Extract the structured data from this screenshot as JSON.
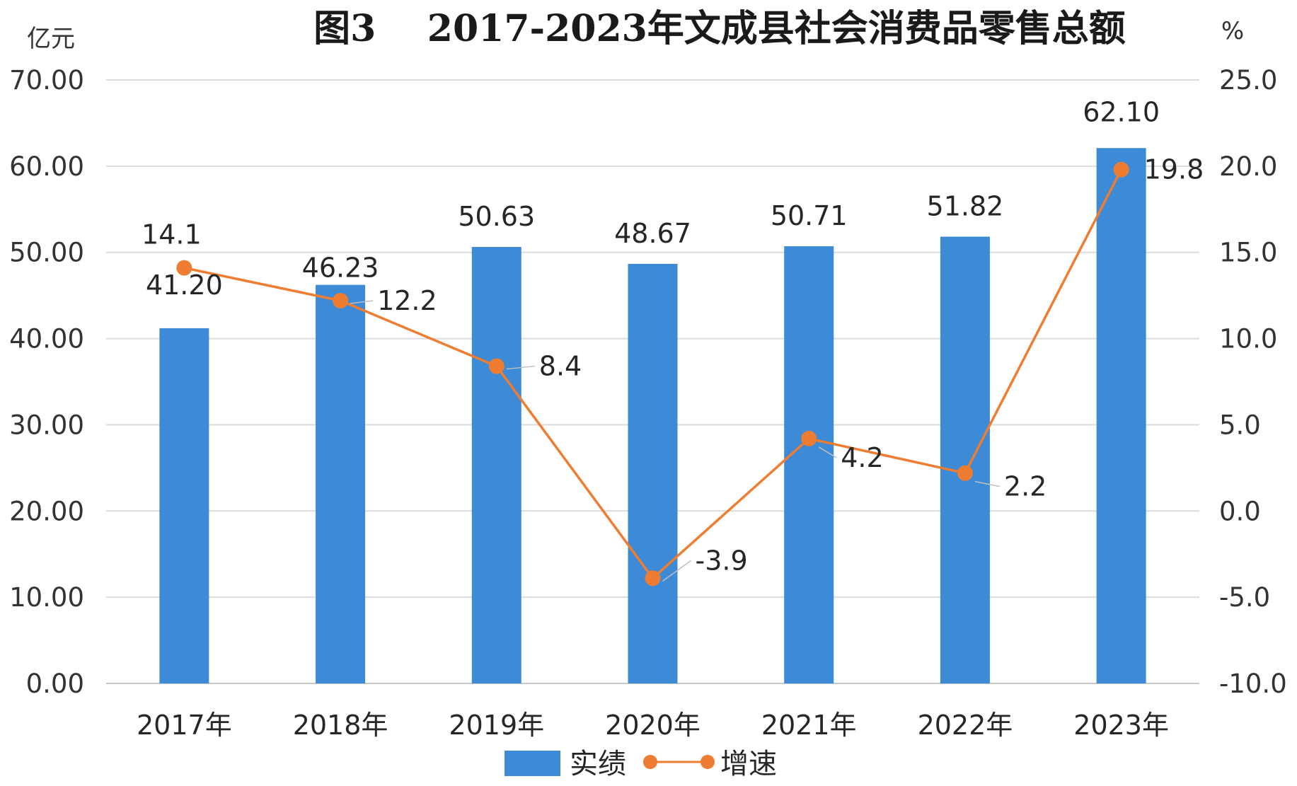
{
  "chart_data": {
    "type": "bar",
    "title": "图3    2017-2023年文成县社会消费品零售总额",
    "categories": [
      "2017年",
      "2018年",
      "2019年",
      "2020年",
      "2021年",
      "2022年",
      "2023年"
    ],
    "series": [
      {
        "name": "实绩",
        "type": "bar",
        "axis": "left",
        "values": [
          41.2,
          46.23,
          50.63,
          48.67,
          50.71,
          51.82,
          62.1
        ],
        "labels": [
          "41.20",
          "46.23",
          "50.63",
          "48.67",
          "50.71",
          "51.82",
          "62.10"
        ],
        "color": "#3d8ad6"
      },
      {
        "name": "增速",
        "type": "line",
        "axis": "right",
        "values": [
          14.1,
          12.2,
          8.4,
          -3.9,
          4.2,
          2.2,
          19.8
        ],
        "labels": [
          "14.1",
          "12.2",
          "8.4",
          "-3.9",
          "4.2",
          "2.2",
          "19.8"
        ],
        "color": "#ee7d31"
      }
    ],
    "y_left": {
      "unit": "亿元",
      "ylim": [
        0,
        70
      ],
      "ticks": [
        "0.00",
        "10.00",
        "20.00",
        "30.00",
        "40.00",
        "50.00",
        "60.00",
        "70.00"
      ]
    },
    "y_right": {
      "unit": "%",
      "ylim": [
        -10,
        25
      ],
      "ticks": [
        "-10.0",
        "-5.0",
        "0.0",
        "5.0",
        "10.0",
        "15.0",
        "20.0",
        "25.0"
      ]
    },
    "grid": true,
    "legend": "bottom"
  }
}
